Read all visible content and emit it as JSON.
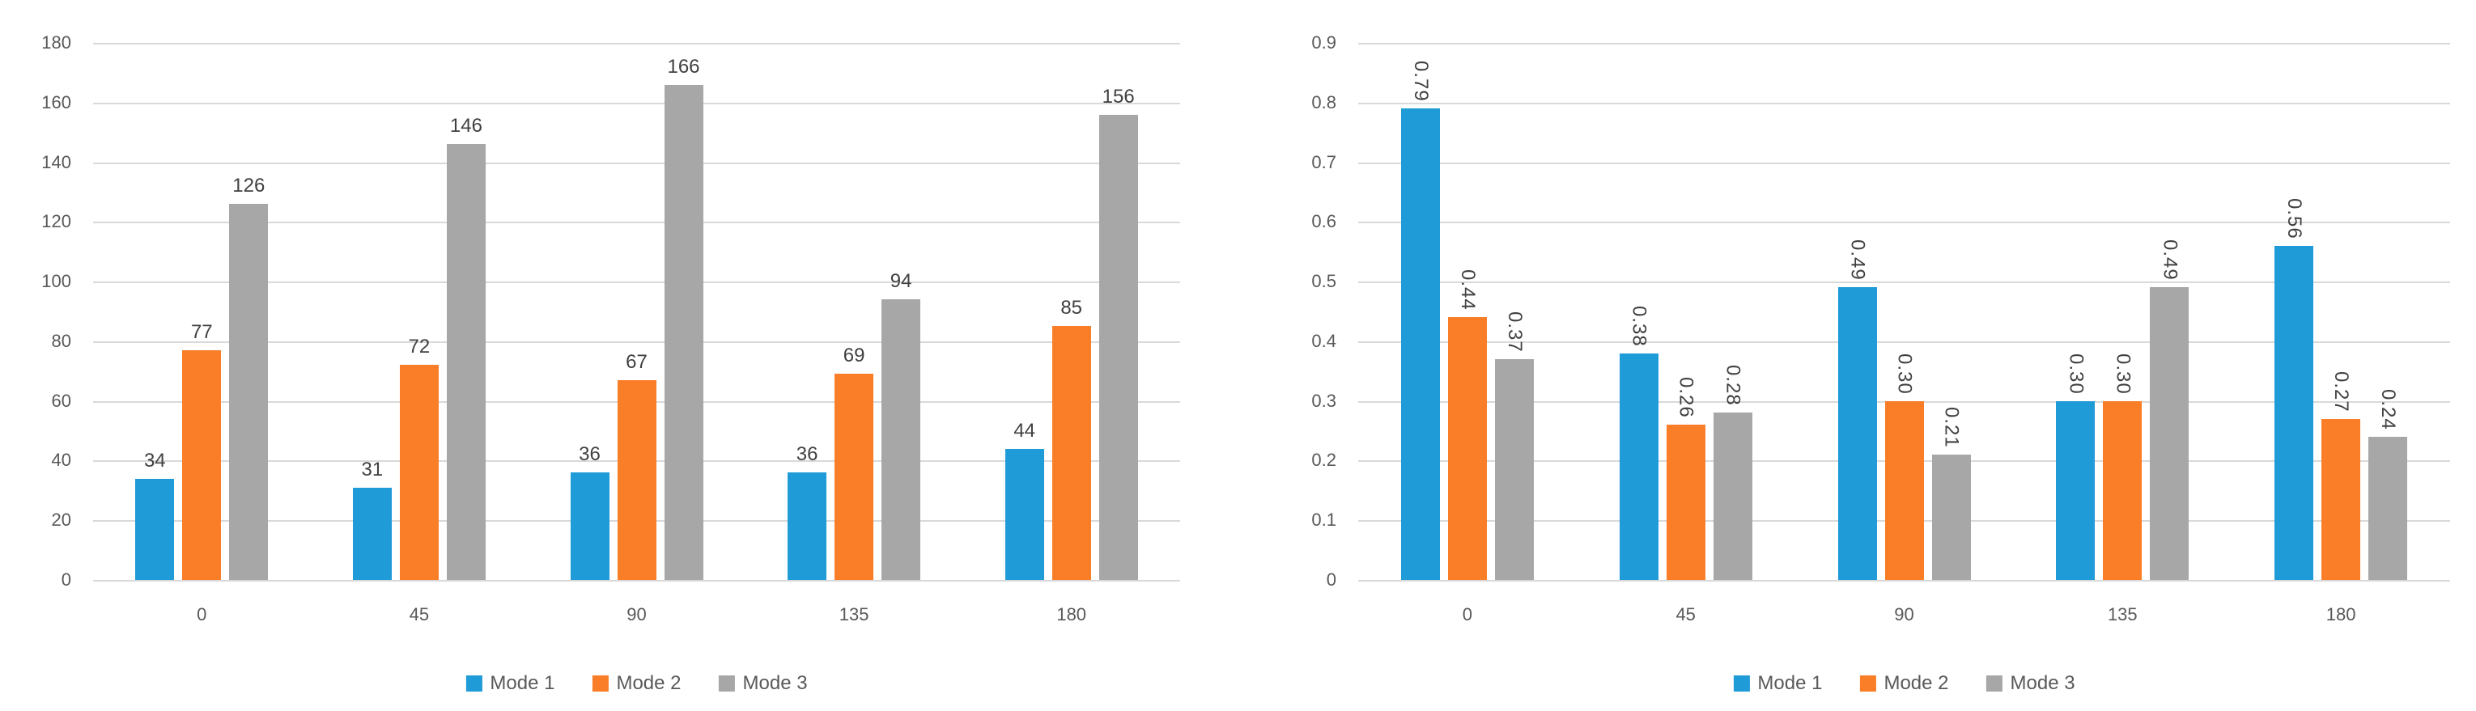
{
  "page": {
    "background": "#ffffff",
    "gridline_color": "#d9d9d9",
    "tick_text_color": "#595959",
    "data_label_color": "#404040"
  },
  "chart_data": [
    {
      "type": "bar",
      "title": "",
      "xlabel": "",
      "ylabel": "",
      "categories": [
        "0",
        "45",
        "90",
        "135",
        "180"
      ],
      "series": [
        {
          "name": "Mode 1",
          "color": "#1f9bd7",
          "values": [
            34,
            31,
            36,
            36,
            44
          ],
          "labels": [
            "34",
            "31",
            "36",
            "36",
            "44"
          ]
        },
        {
          "name": "Mode 2",
          "color": "#fa7d28",
          "values": [
            77,
            72,
            67,
            69,
            85
          ],
          "labels": [
            "77",
            "72",
            "67",
            "69",
            "85"
          ]
        },
        {
          "name": "Mode 3",
          "color": "#a7a7a7",
          "values": [
            126,
            146,
            166,
            94,
            156
          ],
          "labels": [
            "126",
            "146",
            "166",
            "94",
            "156"
          ]
        }
      ],
      "y_axis": {
        "min": 0,
        "max": 180,
        "step": 20,
        "ticks": [
          "0",
          "20",
          "40",
          "60",
          "80",
          "100",
          "120",
          "140",
          "160",
          "180"
        ]
      },
      "ylim": [
        0,
        180
      ],
      "grid": true,
      "legend_position": "bottom",
      "legend_labels": [
        "Mode 1",
        "Mode 2",
        "Mode 3"
      ],
      "data_label_rotation": 0
    },
    {
      "type": "bar",
      "title": "",
      "xlabel": "",
      "ylabel": "",
      "categories": [
        "0",
        "45",
        "90",
        "135",
        "180"
      ],
      "series": [
        {
          "name": "Mode 1",
          "color": "#1f9bd7",
          "values": [
            0.79,
            0.38,
            0.49,
            0.3,
            0.56
          ],
          "labels": [
            "0.79",
            "0.38",
            "0.49",
            "0.30",
            "0.56"
          ]
        },
        {
          "name": "Mode 2",
          "color": "#fa7d28",
          "values": [
            0.44,
            0.26,
            0.3,
            0.3,
            0.27
          ],
          "labels": [
            "0.44",
            "0.26",
            "0.30",
            "0.30",
            "0.27"
          ]
        },
        {
          "name": "Mode 3",
          "color": "#a7a7a7",
          "values": [
            0.37,
            0.28,
            0.21,
            0.49,
            0.24
          ],
          "labels": [
            "0.37",
            "0.28",
            "0.21",
            "0.49",
            "0.24"
          ]
        }
      ],
      "y_axis": {
        "min": 0,
        "max": 0.9,
        "step": 0.1,
        "ticks": [
          "0",
          "0.1",
          "0.2",
          "0.3",
          "0.4",
          "0.5",
          "0.6",
          "0.7",
          "0.8",
          "0.9"
        ]
      },
      "ylim": [
        0,
        0.9
      ],
      "grid": true,
      "legend_position": "bottom",
      "legend_labels": [
        "Mode 1",
        "Mode 2",
        "Mode 3"
      ],
      "data_label_rotation": 90
    }
  ]
}
